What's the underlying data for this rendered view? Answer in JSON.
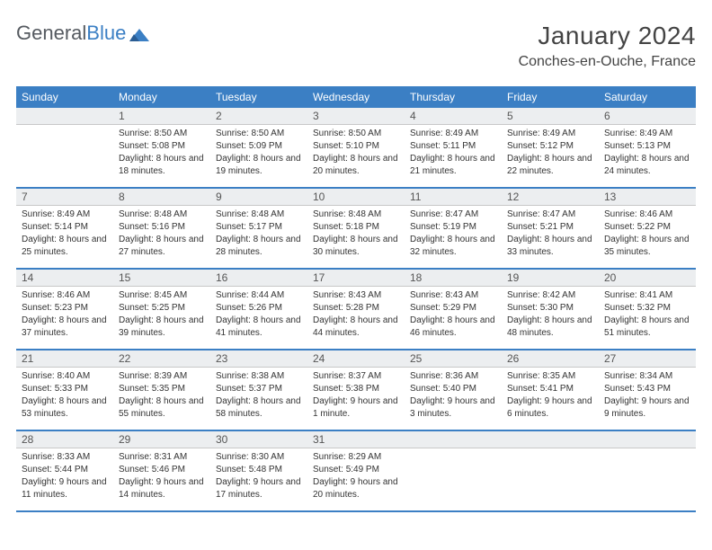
{
  "brand": {
    "part1": "General",
    "part2": "Blue"
  },
  "title": "January 2024",
  "location": "Conches-en-Ouche, France",
  "weekdays": [
    "Sunday",
    "Monday",
    "Tuesday",
    "Wednesday",
    "Thursday",
    "Friday",
    "Saturday"
  ],
  "colors": {
    "header_bg": "#3b7fc4",
    "header_text": "#ffffff",
    "daynum_bg": "#eceef0",
    "border": "#3b7fc4",
    "text": "#333333"
  },
  "first_day_index": 1,
  "days": [
    {
      "n": 1,
      "sunrise": "8:50 AM",
      "sunset": "5:08 PM",
      "daylight": "8 hours and 18 minutes."
    },
    {
      "n": 2,
      "sunrise": "8:50 AM",
      "sunset": "5:09 PM",
      "daylight": "8 hours and 19 minutes."
    },
    {
      "n": 3,
      "sunrise": "8:50 AM",
      "sunset": "5:10 PM",
      "daylight": "8 hours and 20 minutes."
    },
    {
      "n": 4,
      "sunrise": "8:49 AM",
      "sunset": "5:11 PM",
      "daylight": "8 hours and 21 minutes."
    },
    {
      "n": 5,
      "sunrise": "8:49 AM",
      "sunset": "5:12 PM",
      "daylight": "8 hours and 22 minutes."
    },
    {
      "n": 6,
      "sunrise": "8:49 AM",
      "sunset": "5:13 PM",
      "daylight": "8 hours and 24 minutes."
    },
    {
      "n": 7,
      "sunrise": "8:49 AM",
      "sunset": "5:14 PM",
      "daylight": "8 hours and 25 minutes."
    },
    {
      "n": 8,
      "sunrise": "8:48 AM",
      "sunset": "5:16 PM",
      "daylight": "8 hours and 27 minutes."
    },
    {
      "n": 9,
      "sunrise": "8:48 AM",
      "sunset": "5:17 PM",
      "daylight": "8 hours and 28 minutes."
    },
    {
      "n": 10,
      "sunrise": "8:48 AM",
      "sunset": "5:18 PM",
      "daylight": "8 hours and 30 minutes."
    },
    {
      "n": 11,
      "sunrise": "8:47 AM",
      "sunset": "5:19 PM",
      "daylight": "8 hours and 32 minutes."
    },
    {
      "n": 12,
      "sunrise": "8:47 AM",
      "sunset": "5:21 PM",
      "daylight": "8 hours and 33 minutes."
    },
    {
      "n": 13,
      "sunrise": "8:46 AM",
      "sunset": "5:22 PM",
      "daylight": "8 hours and 35 minutes."
    },
    {
      "n": 14,
      "sunrise": "8:46 AM",
      "sunset": "5:23 PM",
      "daylight": "8 hours and 37 minutes."
    },
    {
      "n": 15,
      "sunrise": "8:45 AM",
      "sunset": "5:25 PM",
      "daylight": "8 hours and 39 minutes."
    },
    {
      "n": 16,
      "sunrise": "8:44 AM",
      "sunset": "5:26 PM",
      "daylight": "8 hours and 41 minutes."
    },
    {
      "n": 17,
      "sunrise": "8:43 AM",
      "sunset": "5:28 PM",
      "daylight": "8 hours and 44 minutes."
    },
    {
      "n": 18,
      "sunrise": "8:43 AM",
      "sunset": "5:29 PM",
      "daylight": "8 hours and 46 minutes."
    },
    {
      "n": 19,
      "sunrise": "8:42 AM",
      "sunset": "5:30 PM",
      "daylight": "8 hours and 48 minutes."
    },
    {
      "n": 20,
      "sunrise": "8:41 AM",
      "sunset": "5:32 PM",
      "daylight": "8 hours and 51 minutes."
    },
    {
      "n": 21,
      "sunrise": "8:40 AM",
      "sunset": "5:33 PM",
      "daylight": "8 hours and 53 minutes."
    },
    {
      "n": 22,
      "sunrise": "8:39 AM",
      "sunset": "5:35 PM",
      "daylight": "8 hours and 55 minutes."
    },
    {
      "n": 23,
      "sunrise": "8:38 AM",
      "sunset": "5:37 PM",
      "daylight": "8 hours and 58 minutes."
    },
    {
      "n": 24,
      "sunrise": "8:37 AM",
      "sunset": "5:38 PM",
      "daylight": "9 hours and 1 minute."
    },
    {
      "n": 25,
      "sunrise": "8:36 AM",
      "sunset": "5:40 PM",
      "daylight": "9 hours and 3 minutes."
    },
    {
      "n": 26,
      "sunrise": "8:35 AM",
      "sunset": "5:41 PM",
      "daylight": "9 hours and 6 minutes."
    },
    {
      "n": 27,
      "sunrise": "8:34 AM",
      "sunset": "5:43 PM",
      "daylight": "9 hours and 9 minutes."
    },
    {
      "n": 28,
      "sunrise": "8:33 AM",
      "sunset": "5:44 PM",
      "daylight": "9 hours and 11 minutes."
    },
    {
      "n": 29,
      "sunrise": "8:31 AM",
      "sunset": "5:46 PM",
      "daylight": "9 hours and 14 minutes."
    },
    {
      "n": 30,
      "sunrise": "8:30 AM",
      "sunset": "5:48 PM",
      "daylight": "9 hours and 17 minutes."
    },
    {
      "n": 31,
      "sunrise": "8:29 AM",
      "sunset": "5:49 PM",
      "daylight": "9 hours and 20 minutes."
    }
  ],
  "labels": {
    "sunrise": "Sunrise:",
    "sunset": "Sunset:",
    "daylight": "Daylight:"
  }
}
